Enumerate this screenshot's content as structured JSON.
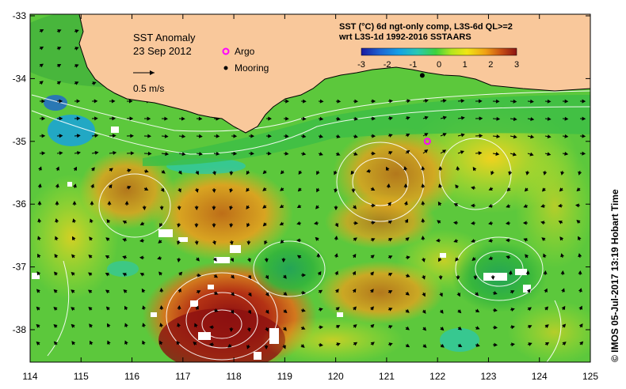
{
  "title": {
    "line1": "SST Anomaly",
    "line2": "23 Sep 2012"
  },
  "velocity_scale_label": "0.5 m/s",
  "legend": {
    "argo_label": "Argo",
    "mooring_label": "Mooring",
    "argo_color": "#ff00ff",
    "mooring_color": "#000000"
  },
  "colorbar": {
    "title_line1": "SST (°C) 6d ngt-only comp, L3S-6d QL>=2",
    "title_line2": "wrt L3S-1d 1992-2016 SSTAARS",
    "ticks": [
      "-3",
      "-2",
      "-1",
      "0",
      "1",
      "2",
      "3"
    ],
    "colors": [
      "#1a1aa0",
      "#1e64d2",
      "#14a0e6",
      "#28c8b4",
      "#3cd23c",
      "#b4e61e",
      "#f0e614",
      "#f0a014",
      "#c85014",
      "#8c1414"
    ]
  },
  "credit": "© IMOS 05-Jul-2017 13:19 Hobart Time",
  "map": {
    "land_color": "#f9c89b",
    "x_ticks": [
      "114",
      "115",
      "116",
      "117",
      "118",
      "119",
      "120",
      "121",
      "122",
      "123",
      "124",
      "125"
    ],
    "y_ticks": [
      "-33",
      "-34",
      "-35",
      "-36",
      "-37",
      "-38"
    ],
    "lon_range": [
      114,
      125
    ],
    "lat_range": [
      -38.5,
      -33
    ],
    "argo": {
      "lon": 121.8,
      "lat": -35.0
    },
    "mooring": {
      "lon": 121.7,
      "lat": -33.95
    }
  }
}
